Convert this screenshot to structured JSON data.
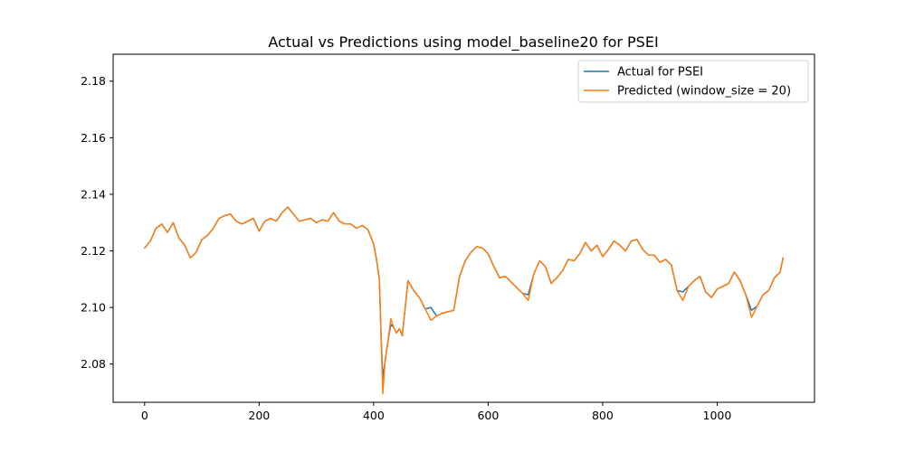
{
  "chart_data": {
    "type": "line",
    "title": "Actual vs Predictions using model_baseline20 for PSEI",
    "xlabel": "",
    "ylabel": "",
    "xlim": [
      -55,
      1170
    ],
    "ylim": [
      2.0665,
      2.1895
    ],
    "xticks": [
      0,
      200,
      400,
      600,
      800,
      1000
    ],
    "yticks": [
      2.08,
      2.1,
      2.12,
      2.14,
      2.16,
      2.18
    ],
    "ytick_labels": [
      "2.08",
      "2.10",
      "2.12",
      "2.14",
      "2.16",
      "2.18"
    ],
    "grid": false,
    "legend_position": "top-right",
    "series": [
      {
        "name": "Actual for PSEI",
        "color": "#1f77b4",
        "x": [
          0,
          10,
          20,
          30,
          40,
          50,
          60,
          70,
          80,
          90,
          100,
          110,
          120,
          130,
          140,
          150,
          160,
          170,
          180,
          190,
          200,
          210,
          220,
          230,
          240,
          250,
          260,
          270,
          280,
          290,
          300,
          310,
          320,
          330,
          340,
          350,
          360,
          370,
          380,
          390,
          400,
          405,
          410,
          413,
          416,
          420,
          425,
          430,
          435,
          440,
          445,
          450,
          460,
          470,
          480,
          490,
          500,
          510,
          520,
          530,
          540,
          550,
          560,
          570,
          580,
          590,
          600,
          610,
          620,
          630,
          640,
          650,
          660,
          670,
          680,
          690,
          700,
          710,
          720,
          730,
          740,
          750,
          760,
          770,
          780,
          790,
          800,
          810,
          820,
          830,
          840,
          850,
          860,
          870,
          880,
          890,
          900,
          910,
          920,
          930,
          940,
          950,
          960,
          970,
          980,
          990,
          1000,
          1010,
          1020,
          1030,
          1040,
          1050,
          1060,
          1070,
          1080,
          1090,
          1100,
          1110,
          1115
        ],
        "values": [
          2.121,
          2.1235,
          2.128,
          2.1295,
          2.1265,
          2.13,
          2.1245,
          2.122,
          2.1175,
          2.1195,
          2.124,
          2.1255,
          2.128,
          2.1315,
          2.1325,
          2.133,
          2.1305,
          2.1295,
          2.1305,
          2.1315,
          2.127,
          2.1305,
          2.1315,
          2.1305,
          2.1335,
          2.1355,
          2.133,
          2.1305,
          2.131,
          2.1315,
          2.13,
          2.131,
          2.1305,
          2.1335,
          2.1305,
          2.1295,
          2.1295,
          2.128,
          2.129,
          2.1275,
          2.1225,
          2.117,
          2.11,
          2.09,
          2.075,
          2.081,
          2.088,
          2.094,
          2.093,
          2.091,
          2.0925,
          2.09,
          2.1095,
          2.106,
          2.1035,
          2.0995,
          2.1,
          2.097,
          2.098,
          2.0985,
          2.099,
          2.111,
          2.1165,
          2.1195,
          2.1215,
          2.121,
          2.119,
          2.1145,
          2.1105,
          2.111,
          2.109,
          2.107,
          2.105,
          2.1045,
          2.112,
          2.1165,
          2.1145,
          2.1085,
          2.1105,
          2.113,
          2.117,
          2.1165,
          2.119,
          2.123,
          2.12,
          2.122,
          2.118,
          2.1205,
          2.1235,
          2.122,
          2.12,
          2.1235,
          2.124,
          2.1205,
          2.1185,
          2.1185,
          2.116,
          2.117,
          2.115,
          2.106,
          2.1055,
          2.1075,
          2.1095,
          2.111,
          2.1055,
          2.1035,
          2.1065,
          2.1075,
          2.1085,
          2.1125,
          2.1095,
          2.1045,
          2.099,
          2.1005,
          2.1045,
          2.106,
          2.1105,
          2.1125,
          2.1175
        ]
      },
      {
        "name": "Predicted (window_size = 20)",
        "color": "#ff7f0e",
        "x": [
          0,
          10,
          20,
          30,
          40,
          50,
          60,
          70,
          80,
          90,
          100,
          110,
          120,
          130,
          140,
          150,
          160,
          170,
          180,
          190,
          200,
          210,
          220,
          230,
          240,
          250,
          260,
          270,
          280,
          290,
          300,
          310,
          320,
          330,
          340,
          350,
          360,
          370,
          380,
          390,
          400,
          405,
          410,
          413,
          416,
          420,
          425,
          430,
          435,
          440,
          445,
          450,
          460,
          470,
          480,
          490,
          500,
          510,
          520,
          530,
          540,
          550,
          560,
          570,
          580,
          590,
          600,
          610,
          620,
          630,
          640,
          650,
          660,
          670,
          680,
          690,
          700,
          710,
          720,
          730,
          740,
          750,
          760,
          770,
          780,
          790,
          800,
          810,
          820,
          830,
          840,
          850,
          860,
          870,
          880,
          890,
          900,
          910,
          920,
          930,
          940,
          950,
          960,
          970,
          980,
          990,
          1000,
          1010,
          1020,
          1030,
          1040,
          1050,
          1060,
          1070,
          1080,
          1090,
          1100,
          1110,
          1115
        ],
        "values": [
          2.121,
          2.1235,
          2.128,
          2.1295,
          2.1265,
          2.13,
          2.1245,
          2.122,
          2.1175,
          2.1195,
          2.124,
          2.1255,
          2.128,
          2.1315,
          2.1325,
          2.133,
          2.1305,
          2.1295,
          2.1305,
          2.1315,
          2.127,
          2.1305,
          2.1315,
          2.1305,
          2.1335,
          2.1355,
          2.133,
          2.1305,
          2.131,
          2.1315,
          2.13,
          2.131,
          2.1305,
          2.1335,
          2.1305,
          2.1295,
          2.1295,
          2.128,
          2.129,
          2.1275,
          2.1225,
          2.117,
          2.11,
          2.09,
          2.0695,
          2.081,
          2.088,
          2.096,
          2.093,
          2.091,
          2.0925,
          2.09,
          2.1095,
          2.106,
          2.1035,
          2.0995,
          2.0955,
          2.097,
          2.098,
          2.0985,
          2.099,
          2.111,
          2.1165,
          2.1195,
          2.1215,
          2.121,
          2.119,
          2.1145,
          2.1105,
          2.111,
          2.109,
          2.107,
          2.105,
          2.1025,
          2.112,
          2.1165,
          2.1145,
          2.1085,
          2.1105,
          2.113,
          2.117,
          2.1165,
          2.119,
          2.123,
          2.12,
          2.122,
          2.118,
          2.1205,
          2.1235,
          2.122,
          2.12,
          2.1235,
          2.124,
          2.1205,
          2.1185,
          2.1185,
          2.116,
          2.117,
          2.115,
          2.106,
          2.1025,
          2.1075,
          2.1095,
          2.111,
          2.1055,
          2.1035,
          2.1065,
          2.1075,
          2.1085,
          2.1125,
          2.1095,
          2.1045,
          2.0965,
          2.1005,
          2.1045,
          2.106,
          2.1105,
          2.1125,
          2.1175
        ]
      }
    ]
  }
}
